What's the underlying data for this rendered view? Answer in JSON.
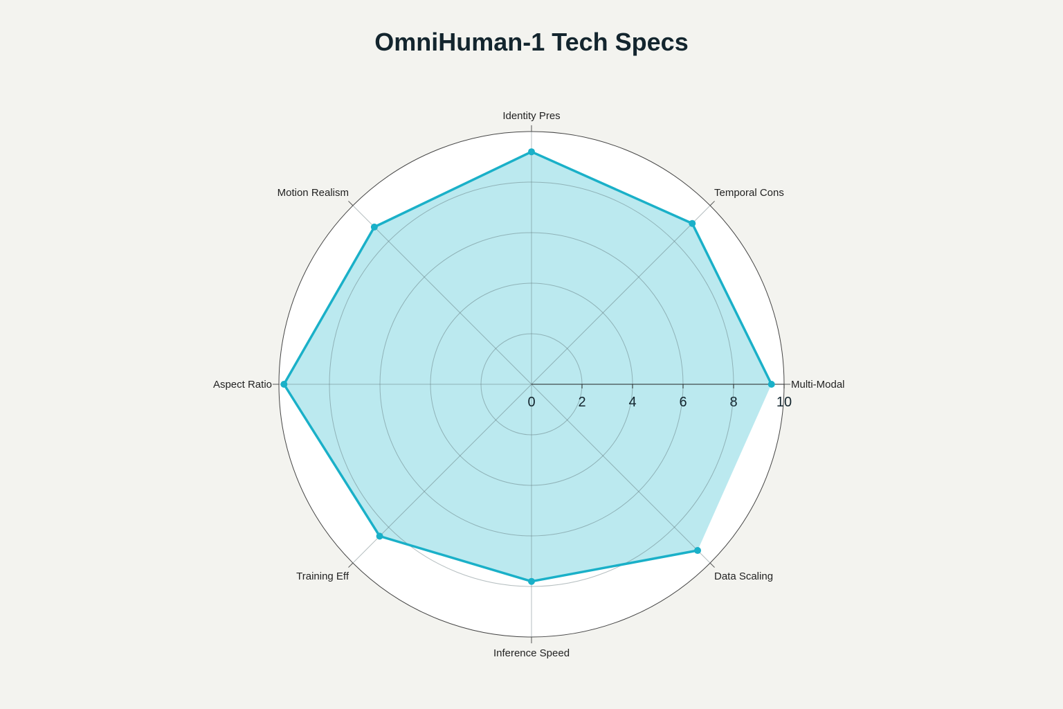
{
  "chart_data": {
    "type": "radar",
    "title": "OmniHuman-1 Tech Specs",
    "categories": [
      "Multi-Modal",
      "Temporal Cons",
      "Identity Pres",
      "Motion Realism",
      "Aspect Ratio",
      "Training Eff",
      "Inference Speed",
      "Data Scaling"
    ],
    "values": [
      9.5,
      9.0,
      9.2,
      8.8,
      9.8,
      8.5,
      7.8,
      9.3
    ],
    "radial_range": [
      0,
      10
    ],
    "radial_ticks": [
      "0",
      "2",
      "4",
      "6",
      "8",
      "10"
    ],
    "grid": true,
    "legend": "none",
    "colors": {
      "line": "#1ab0c8",
      "fill": "#bbe9ef",
      "background": "#f3f3ef",
      "plot_area": "#ffffff"
    }
  }
}
